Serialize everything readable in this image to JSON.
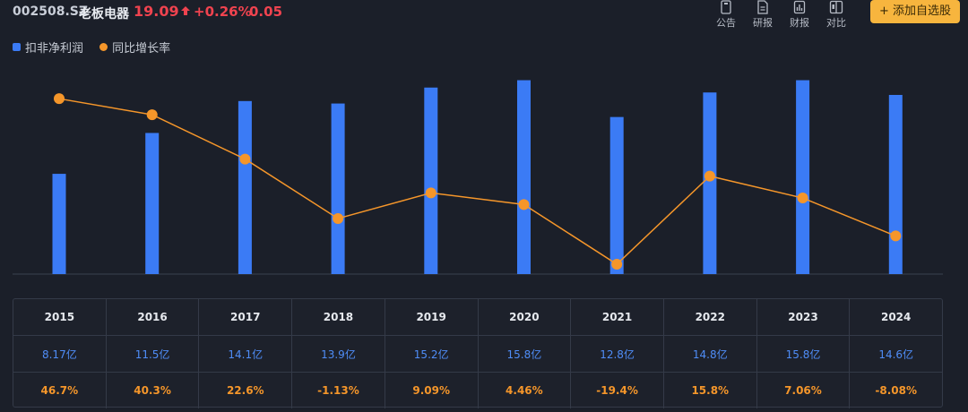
{
  "header": {
    "code": "002508.SZ",
    "name": "老板电器",
    "price": "19.09",
    "change_pct": "+0.26%",
    "change_abs": "0.05",
    "toolbar": [
      {
        "label": "公告",
        "icon": "notice-icon"
      },
      {
        "label": "研报",
        "icon": "report-icon"
      },
      {
        "label": "财报",
        "icon": "financial-report-icon"
      },
      {
        "label": "对比",
        "icon": "compare-icon"
      }
    ],
    "add_button": "+ 添加自选股",
    "colors": {
      "up": "#f0434f",
      "accent": "#f7b53e"
    }
  },
  "chart_data": {
    "type": "bar",
    "categories": [
      "2015",
      "2016",
      "2017",
      "2018",
      "2019",
      "2020",
      "2021",
      "2022",
      "2023",
      "2024"
    ],
    "series": [
      {
        "name": "扣非净利润",
        "type": "bar",
        "unit": "亿",
        "color": "#3b7bf5",
        "values": [
          8.17,
          11.5,
          14.1,
          13.9,
          15.2,
          15.8,
          12.8,
          14.8,
          15.8,
          14.6
        ]
      },
      {
        "name": "同比增长率",
        "type": "line",
        "unit": "%",
        "color": "#f5962a",
        "values": [
          46.7,
          40.3,
          22.6,
          -1.13,
          9.09,
          4.46,
          -19.4,
          15.8,
          7.06,
          -8.08
        ]
      }
    ],
    "legend_position": "top-left",
    "grid": false
  },
  "table": {
    "years": [
      "2015",
      "2016",
      "2017",
      "2018",
      "2019",
      "2020",
      "2021",
      "2022",
      "2023",
      "2024"
    ],
    "profit": [
      "8.17亿",
      "11.5亿",
      "14.1亿",
      "13.9亿",
      "15.2亿",
      "15.8亿",
      "12.8亿",
      "14.8亿",
      "15.8亿",
      "14.6亿"
    ],
    "growth": [
      "46.7%",
      "40.3%",
      "22.6%",
      "-1.13%",
      "9.09%",
      "4.46%",
      "-19.4%",
      "15.8%",
      "7.06%",
      "-8.08%"
    ]
  }
}
